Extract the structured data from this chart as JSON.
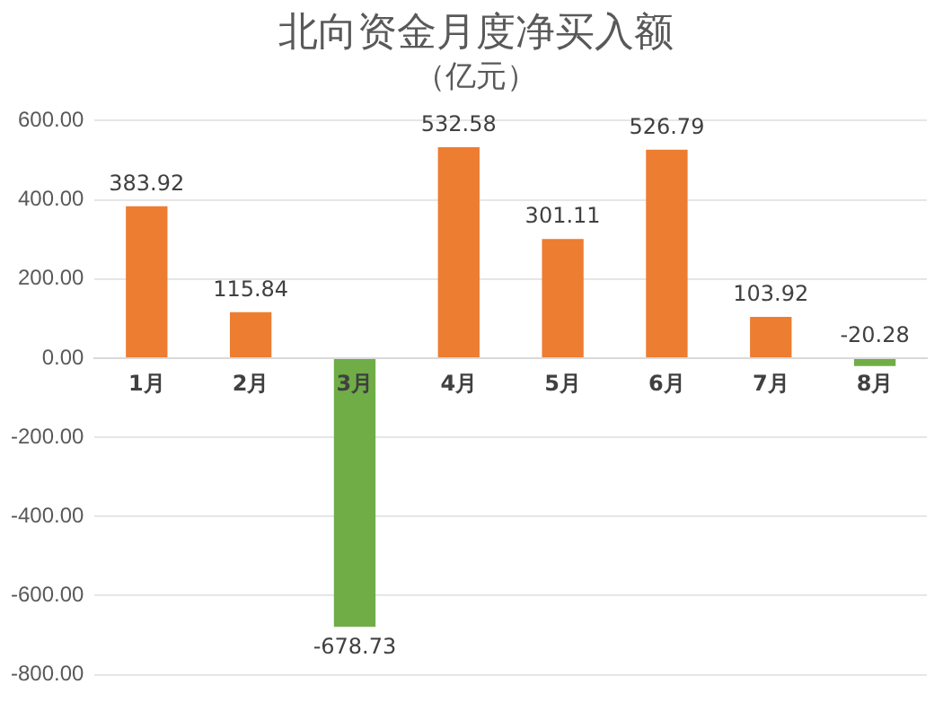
{
  "chart_data": {
    "type": "bar",
    "title": "北向资金月度净买入额",
    "subtitle": "（亿元）",
    "categories": [
      "1月",
      "2月",
      "3月",
      "4月",
      "5月",
      "6月",
      "7月",
      "8月"
    ],
    "values": [
      383.92,
      115.84,
      -678.73,
      532.58,
      301.11,
      526.79,
      103.92,
      -20.28
    ],
    "colors": [
      "#ed7d31",
      "#ed7d31",
      "#70ad47",
      "#ed7d31",
      "#ed7d31",
      "#ed7d31",
      "#ed7d31",
      "#70ad47"
    ],
    "ylim": [
      -800,
      600
    ],
    "yticks": [
      {
        "value": -800,
        "label": "-800.00"
      },
      {
        "value": -600,
        "label": "-600.00"
      },
      {
        "value": -400,
        "label": "-400.00"
      },
      {
        "value": -200,
        "label": "-200.00"
      },
      {
        "value": 0,
        "label": "0.00"
      },
      {
        "value": 200,
        "label": "200.00"
      },
      {
        "value": 400,
        "label": "400.00"
      },
      {
        "value": 600,
        "label": "600.00"
      }
    ],
    "grid": "y",
    "legend": false,
    "data_labels": true
  }
}
